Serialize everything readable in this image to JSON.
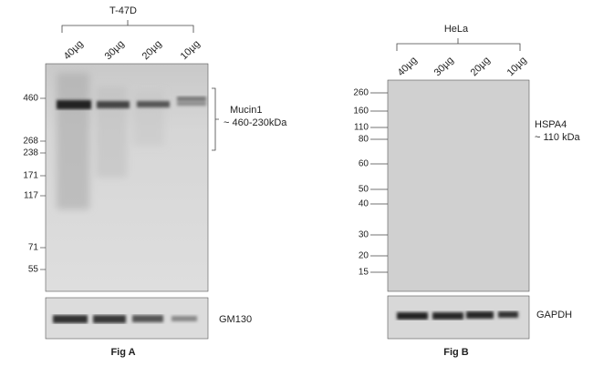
{
  "panel_a": {
    "sample": "T-47D",
    "lanes": [
      "40µg",
      "30µg",
      "20µg",
      "10µg"
    ],
    "markers": [
      "460",
      "268",
      "238",
      "171",
      "117",
      "71",
      "55"
    ],
    "target": "Mucin1",
    "target_size": "~ 460-230kDa",
    "control": "GM130",
    "caption": "Fig A"
  },
  "panel_b": {
    "sample": "HeLa",
    "lanes": [
      "40µg",
      "30µg",
      "20µg",
      "10µg"
    ],
    "markers": [
      "260",
      "160",
      "110",
      "80",
      "60",
      "50",
      "40",
      "30",
      "20",
      "15"
    ],
    "target": "HSPA4",
    "target_size": "~ 110 kDa",
    "control": "GAPDH",
    "caption": "Fig B"
  }
}
